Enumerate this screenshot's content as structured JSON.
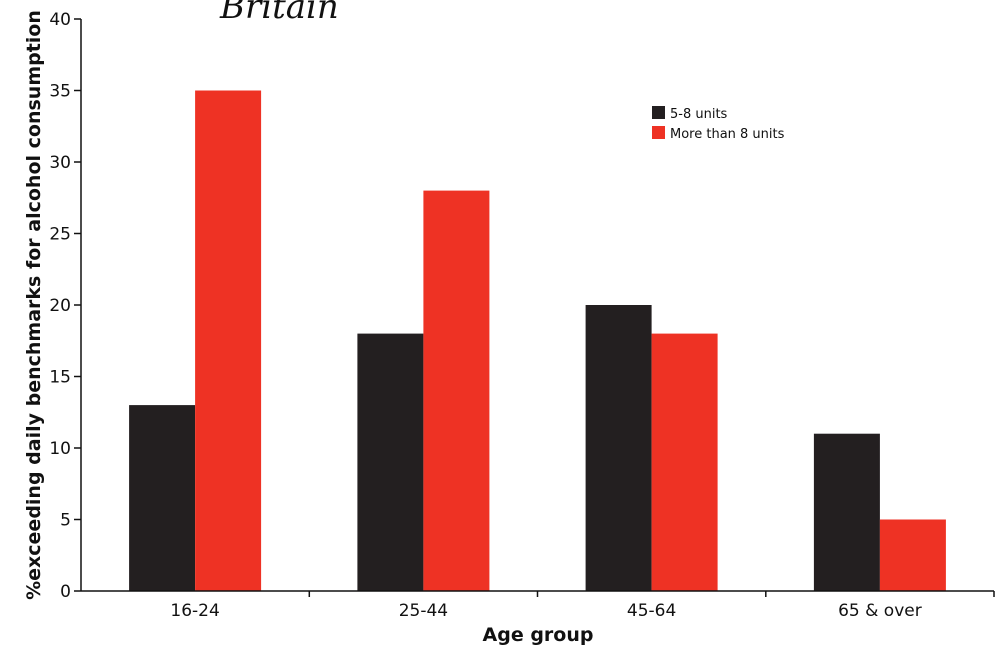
{
  "chart_data": {
    "type": "bar",
    "title": "Britain",
    "xlabel": "Age group",
    "ylabel": "%exceeding daily benchmarks for alcohol consumption",
    "categories": [
      "16-24",
      "25-44",
      "45-64",
      "65 & over"
    ],
    "series": [
      {
        "name": "5-8 units",
        "color": "#231f20",
        "values": [
          13,
          18,
          20,
          11
        ]
      },
      {
        "name": "More than 8 units",
        "color": "#ee3224",
        "values": [
          35,
          28,
          18,
          5
        ]
      }
    ],
    "ylim": [
      0,
      40
    ],
    "yticks": [
      "0",
      "5",
      "10",
      "15",
      "20",
      "25",
      "30",
      "35",
      "40"
    ],
    "ytick_values": [
      0,
      5,
      10,
      15,
      20,
      25,
      30,
      35,
      40
    ],
    "legend_position": "top-right",
    "grid": false
  }
}
